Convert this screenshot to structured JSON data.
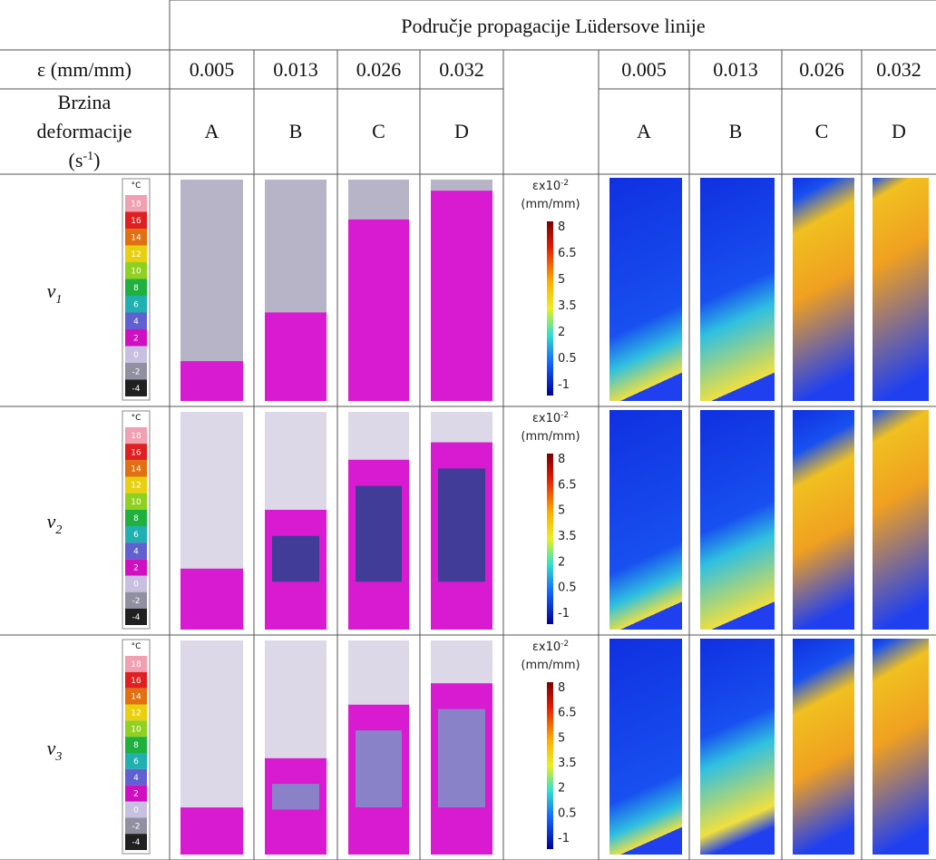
{
  "header": {
    "title": "Područje propagacije Lüdersove linije"
  },
  "strain_label": "ε (mm/mm)",
  "strains": [
    "0.005",
    "0.013",
    "0.026",
    "0.032"
  ],
  "rate_label": {
    "line1": "Brzina",
    "line2": "deformacije",
    "unit_open": "(s",
    "unit_exp": "-1",
    "unit_close": ")"
  },
  "specimens": [
    "A",
    "B",
    "C",
    "D"
  ],
  "rows": [
    {
      "symbol": "v",
      "subscript": "1"
    },
    {
      "symbol": "v",
      "subscript": "2"
    },
    {
      "symbol": "v",
      "subscript": "3"
    }
  ],
  "thermal_scale": {
    "unit": "°C",
    "labels": [
      18,
      16,
      14,
      12,
      10,
      8,
      6,
      4,
      2,
      0,
      -2,
      -4
    ]
  },
  "strain_scale": {
    "base": "εx10",
    "exp": "-2",
    "unit": "(mm/mm)",
    "labels": [
      8,
      6.5,
      5,
      3.5,
      2,
      0.5,
      -1
    ]
  }
}
